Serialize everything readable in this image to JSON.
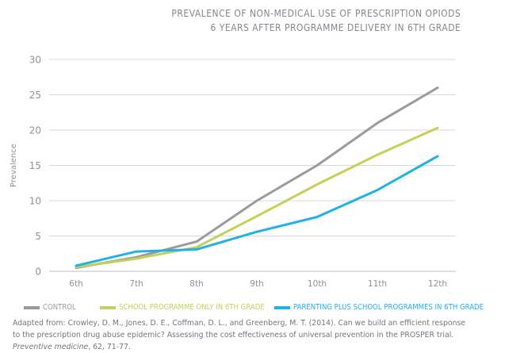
{
  "title_lines": [
    "PREVALENCE OF NON-MEDICAL USE OF PRESCRIPTION OPIODS",
    "6 YEARS AFTER PROGRAMME DELIVERY IN 6TH GRADE"
  ],
  "colors": {
    "control": "#9b9b9b",
    "school": "#c6cf5a",
    "parenting": "#20b1e7",
    "axis_text": "#8c939b",
    "grid": "#d6d9dc"
  },
  "chart_data": {
    "type": "line",
    "title": "PREVALENCE OF NON-MEDICAL USE OF PRESCRIPTION OPIODS 6 YEARS AFTER PROGRAMME DELIVERY IN 6TH GRADE",
    "xlabel": "",
    "ylabel": "Prevalence",
    "categories": [
      "6th",
      "7th",
      "8th",
      "9th",
      "10th",
      "11th",
      "12th"
    ],
    "ylim": [
      0,
      30
    ],
    "yticks": [
      0,
      5,
      10,
      15,
      20,
      25,
      30
    ],
    "grid": true,
    "legend_position": "bottom",
    "series": [
      {
        "name": "CONTROL",
        "color_key": "control",
        "values": [
          0.5,
          2.0,
          4.2,
          10.0,
          15.0,
          21.0,
          26.0
        ]
      },
      {
        "name": "SCHOOL PROGRAMME ONLY IN 6TH GRADE",
        "color_key": "school",
        "values": [
          0.6,
          1.8,
          3.4,
          7.8,
          12.3,
          16.5,
          20.3
        ]
      },
      {
        "name": "PARENTING PLUS SCHOOL PROGRAMMES IN 6TH GRADE",
        "color_key": "parenting",
        "values": [
          0.8,
          2.8,
          3.1,
          5.6,
          7.7,
          11.5,
          16.3
        ]
      }
    ]
  },
  "citation": {
    "part1": "Adapted from: Crowley, D. M., Jones, D. E., Coffman, D. L., and Greenberg, M. T. (2014). Can we build an efficient response to the prescription drug abuse epidemic? Assessing the cost effectiveness of universal prevention in the PROSPER trial. ",
    "journal": "Preventive medicine",
    "part2": ", 62, 71-77."
  }
}
